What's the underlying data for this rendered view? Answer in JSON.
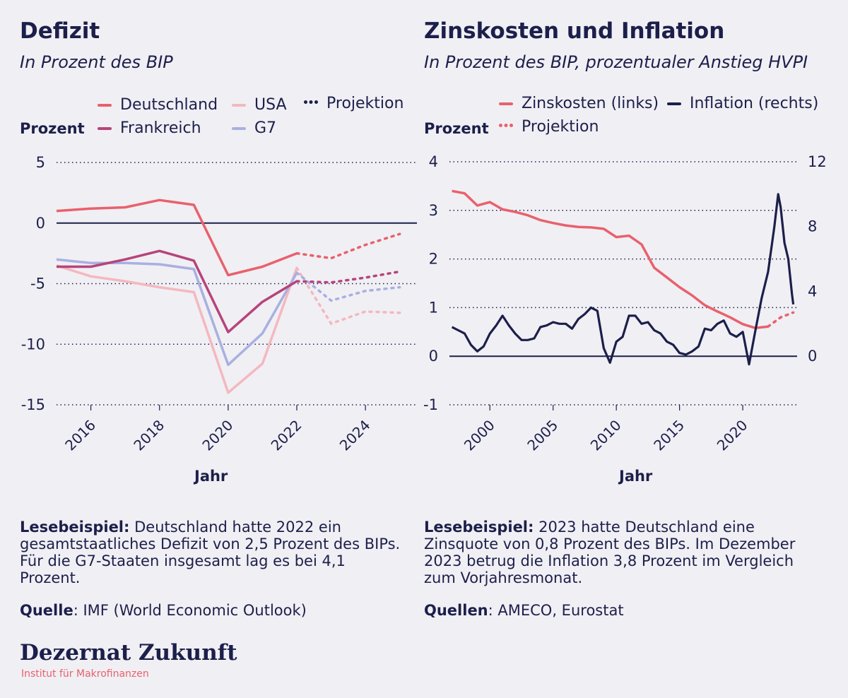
{
  "colors": {
    "background": "#f0eff4",
    "navy": "#1c1f4a",
    "deutschland": "#e8616c",
    "frankreich": "#b6447a",
    "usa": "#f4b8bf",
    "g7": "#a9b0e0",
    "zinskosten": "#e8616c",
    "inflation": "#1c1f4a"
  },
  "left": {
    "title": "Defizit",
    "subtitle": "In Prozent des BIP",
    "legend": {
      "deutschland": "Deutschland",
      "frankreich": "Frankreich",
      "usa": "USA",
      "g7": "G7",
      "projektion": "Projektion"
    },
    "y_title": "Prozent",
    "x_title": "Jahr",
    "note_label": "Lesebeispiel:",
    "note_text": " Deutschland hatte 2022 ein gesamtstaatliches Defizit von 2,5 Prozent des BIPs. Für die G7-Staaten insgesamt lag es bei 4,1 Prozent.",
    "source_label": "Quelle",
    "source_text": ": IMF (World Economic Outlook)"
  },
  "right": {
    "title": "Zinskosten und Inflation",
    "subtitle": "In Prozent des BIP, prozentualer Anstieg HVPI",
    "legend": {
      "zinskosten": "Zinskosten (links)",
      "inflation": "Inflation (rechts)",
      "projektion": "Projektion"
    },
    "y_title": "Prozent",
    "x_title": "Jahr",
    "note_label": "Lesebeispiel:",
    "note_text": " 2023 hatte Deutschland eine Zinsquote von 0,8 Prozent des BIPs. Im Dezember 2023 betrug die Inflation 3,8 Prozent im Vergleich zum Vorjahresmonat.",
    "source_label": "Quellen",
    "source_text": ": AMECO, Eurostat"
  },
  "logo": {
    "name_part1": "Dezernat",
    "name_part2": "Zukunft",
    "tagline": "Institut für Makrofinanzen"
  },
  "chart_data": [
    {
      "type": "line",
      "title": "Defizit",
      "ylabel": "Prozent",
      "xlabel": "Jahr",
      "ylim": [
        -15,
        5
      ],
      "xlim": [
        2015,
        2025.5
      ],
      "y_ticks": [
        5,
        0,
        -5,
        -10,
        -15
      ],
      "x_ticks": [
        2016,
        2018,
        2020,
        2022,
        2024
      ],
      "grid": "horizontal dotted",
      "projection_from": 2022,
      "series": [
        {
          "name": "Deutschland",
          "color": "#e8616c",
          "x": [
            2015,
            2016,
            2017,
            2018,
            2019,
            2020,
            2021,
            2022
          ],
          "values": [
            1.0,
            1.2,
            1.3,
            1.9,
            1.5,
            -4.3,
            -3.6,
            -2.5
          ],
          "projection_x": [
            2022,
            2023,
            2024,
            2025
          ],
          "projection_values": [
            -2.5,
            -2.9,
            -1.8,
            -0.9
          ]
        },
        {
          "name": "Frankreich",
          "color": "#b6447a",
          "x": [
            2015,
            2016,
            2017,
            2018,
            2019,
            2020,
            2021,
            2022
          ],
          "values": [
            -3.6,
            -3.6,
            -3.0,
            -2.3,
            -3.1,
            -9.0,
            -6.5,
            -4.8
          ],
          "projection_x": [
            2022,
            2023,
            2024,
            2025
          ],
          "projection_values": [
            -4.8,
            -4.9,
            -4.5,
            -4.0
          ]
        },
        {
          "name": "USA",
          "color": "#f4b8bf",
          "x": [
            2015,
            2016,
            2017,
            2018,
            2019,
            2020,
            2021,
            2022
          ],
          "values": [
            -3.5,
            -4.4,
            -4.8,
            -5.3,
            -5.7,
            -14.0,
            -11.6,
            -3.7
          ],
          "projection_x": [
            2022,
            2023,
            2024,
            2025
          ],
          "projection_values": [
            -3.7,
            -8.3,
            -7.3,
            -7.4
          ]
        },
        {
          "name": "G7",
          "color": "#a9b0e0",
          "x": [
            2015,
            2016,
            2017,
            2018,
            2019,
            2020,
            2021,
            2022
          ],
          "values": [
            -3.0,
            -3.3,
            -3.3,
            -3.4,
            -3.8,
            -11.7,
            -9.1,
            -4.1
          ],
          "projection_x": [
            2022,
            2023,
            2024,
            2025
          ],
          "projection_values": [
            -4.1,
            -6.4,
            -5.6,
            -5.3
          ]
        }
      ]
    },
    {
      "type": "line",
      "title": "Zinskosten und Inflation",
      "ylabel": "Prozent",
      "xlabel": "Jahr",
      "ylim_left": [
        -1,
        4
      ],
      "ylim_right": [
        -3,
        12
      ],
      "xlim": [
        1996.8,
        2024.3
      ],
      "y_ticks_left": [
        4,
        3,
        2,
        1,
        0,
        -1
      ],
      "y_ticks_right": [
        12,
        8,
        4,
        0
      ],
      "x_ticks": [
        2000,
        2005,
        2010,
        2015,
        2020
      ],
      "grid": "horizontal dotted",
      "series": [
        {
          "name": "Zinskosten (links)",
          "axis": "left",
          "color": "#e8616c",
          "x": [
            1997,
            1998,
            1999,
            2000,
            2001,
            2002,
            2003,
            2004,
            2005,
            2006,
            2007,
            2008,
            2009,
            2010,
            2011,
            2012,
            2013,
            2014,
            2015,
            2016,
            2017,
            2018,
            2019,
            2020,
            2021,
            2022
          ],
          "values": [
            3.4,
            3.35,
            3.1,
            3.17,
            3.02,
            2.97,
            2.9,
            2.8,
            2.74,
            2.69,
            2.66,
            2.65,
            2.62,
            2.45,
            2.48,
            2.3,
            1.82,
            1.62,
            1.42,
            1.25,
            1.05,
            0.92,
            0.8,
            0.66,
            0.58,
            0.61
          ],
          "projection_x": [
            2022,
            2023,
            2024
          ],
          "projection_values": [
            0.61,
            0.8,
            0.9
          ]
        },
        {
          "name": "Inflation (rechts)",
          "axis": "right",
          "color": "#1c1f4a",
          "x": [
            1997.0,
            1997.5,
            1998.0,
            1998.5,
            1999.0,
            1999.5,
            2000.0,
            2000.5,
            2001.0,
            2001.5,
            2002.0,
            2002.5,
            2003.0,
            2003.5,
            2004.0,
            2004.5,
            2005.0,
            2005.5,
            2006.0,
            2006.5,
            2007.0,
            2007.5,
            2008.0,
            2008.5,
            2009.0,
            2009.5,
            2010.0,
            2010.5,
            2011.0,
            2011.5,
            2012.0,
            2012.5,
            2013.0,
            2013.5,
            2014.0,
            2014.5,
            2015.0,
            2015.5,
            2016.0,
            2016.5,
            2017.0,
            2017.5,
            2018.0,
            2018.5,
            2019.0,
            2019.5,
            2020.0,
            2020.5,
            2021.0,
            2021.5,
            2022.0,
            2022.5,
            2022.8,
            2023.0,
            2023.3,
            2023.6,
            2023.9,
            2024.0
          ],
          "values": [
            1.8,
            1.6,
            1.4,
            0.7,
            0.3,
            0.6,
            1.4,
            1.9,
            2.5,
            1.9,
            1.4,
            1.0,
            1.0,
            1.1,
            1.8,
            1.9,
            2.1,
            2.0,
            2.0,
            1.7,
            2.3,
            2.6,
            3.0,
            2.8,
            0.5,
            -0.4,
            0.9,
            1.2,
            2.5,
            2.5,
            2.0,
            2.1,
            1.6,
            1.4,
            0.9,
            0.7,
            0.2,
            0.1,
            0.3,
            0.6,
            1.7,
            1.6,
            2.0,
            2.2,
            1.4,
            1.2,
            1.5,
            -0.5,
            1.6,
            3.6,
            5.2,
            8.0,
            10.0,
            9.2,
            7.0,
            6.0,
            3.8,
            3.2
          ]
        }
      ]
    }
  ]
}
